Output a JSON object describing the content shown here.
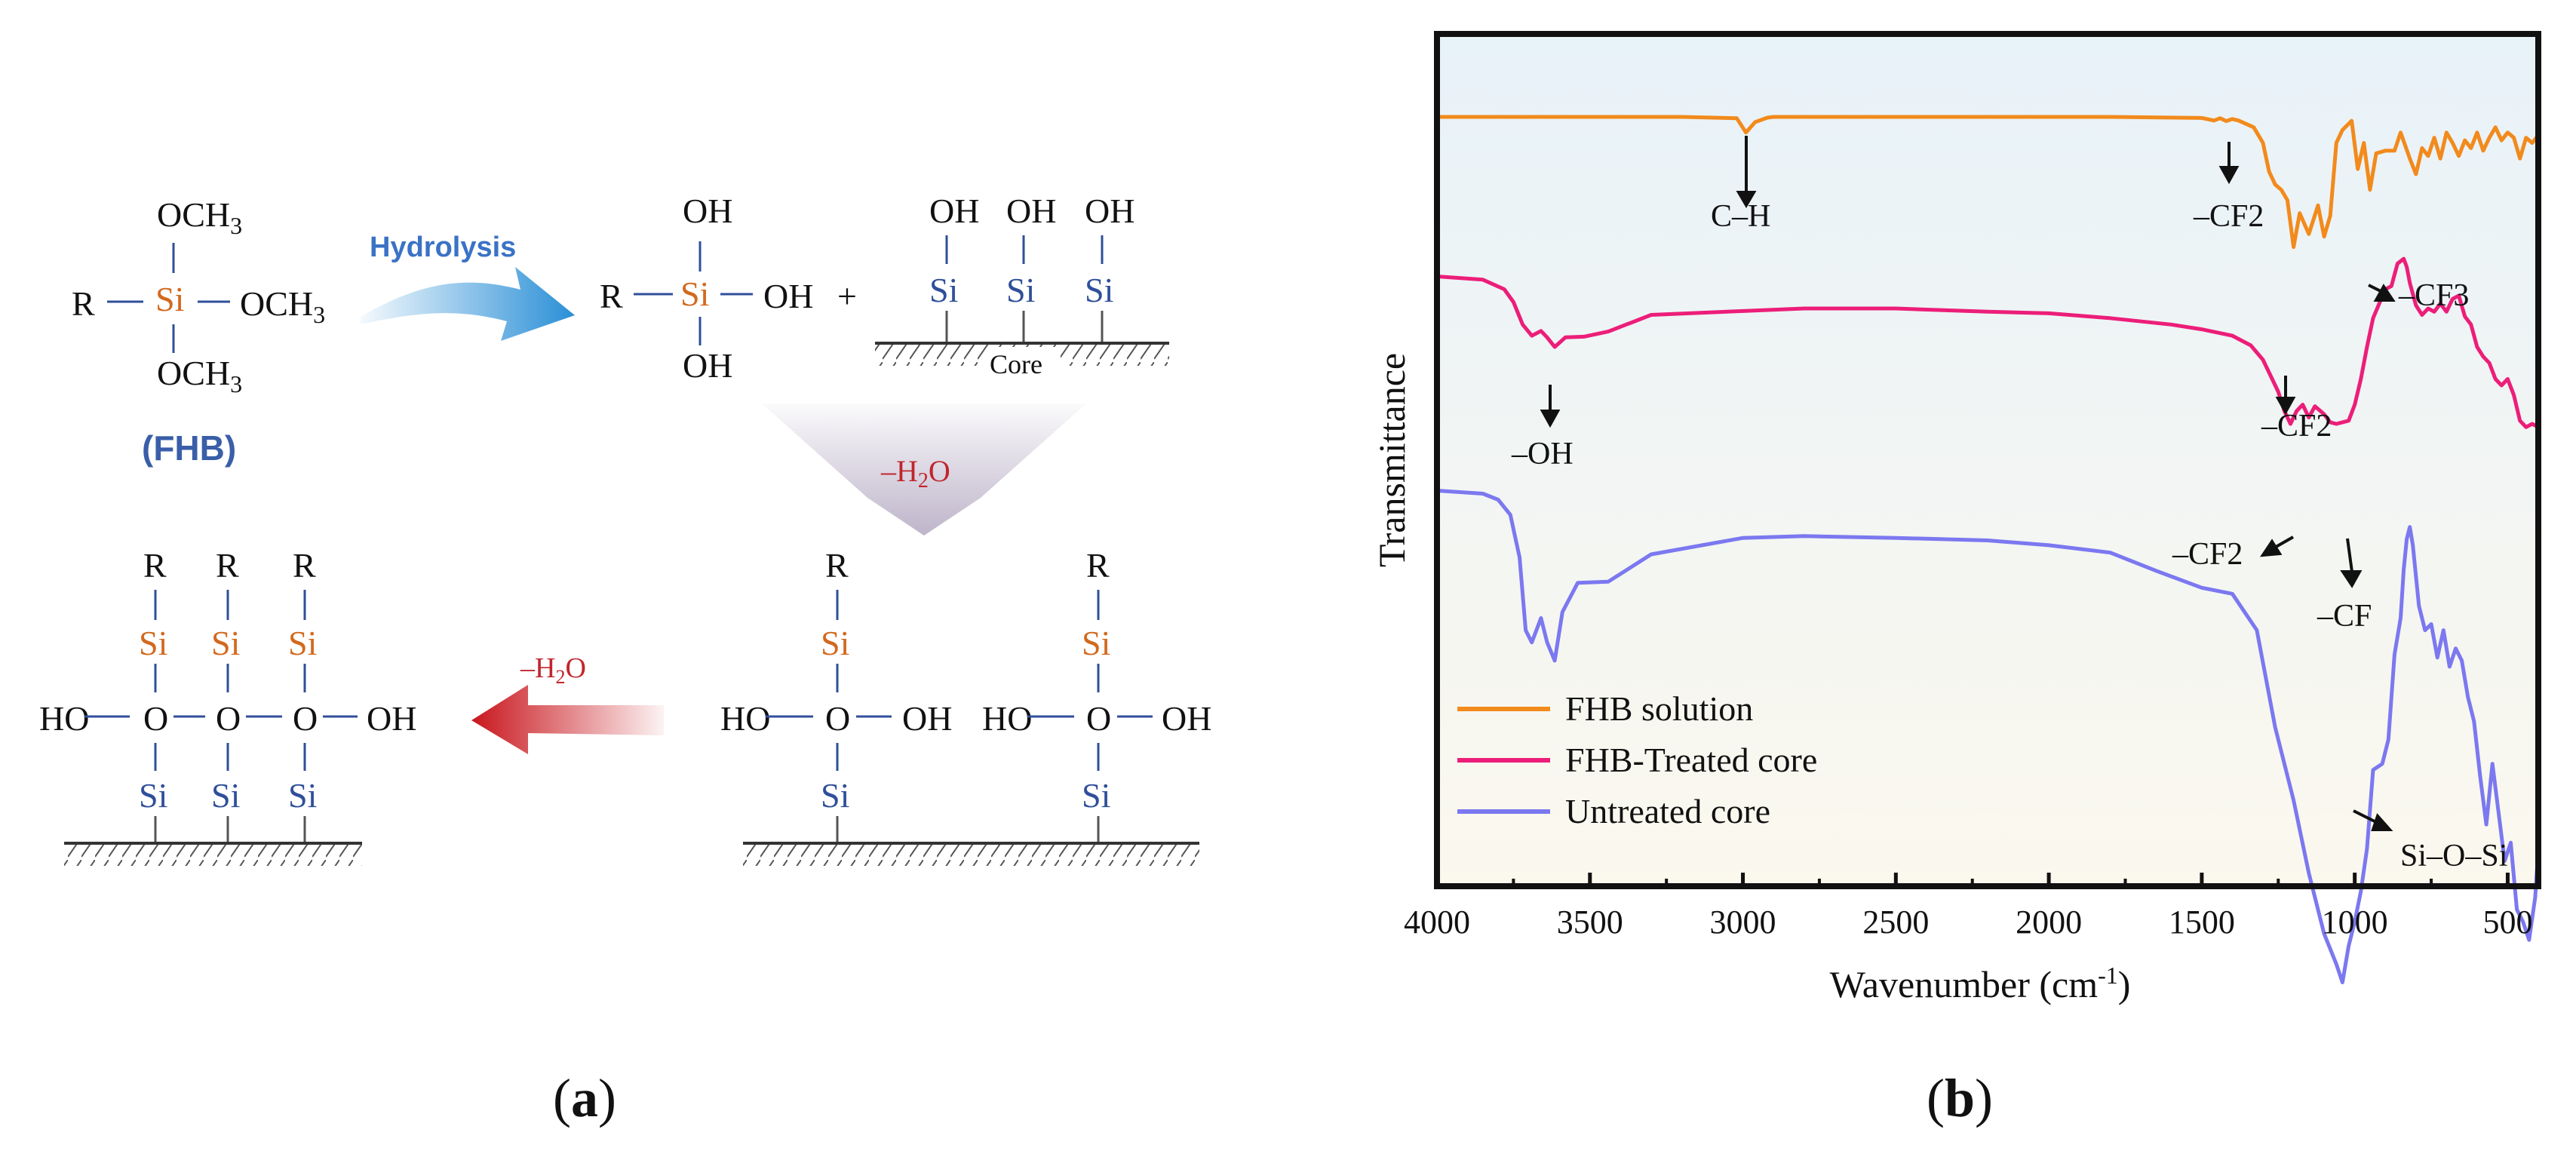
{
  "panel_a": {
    "label": "(a)",
    "hydrolysis_label": "Hydrolysis",
    "fhb_label": "(FHB)",
    "water_loss_1": "–H2O",
    "water_loss_2": "–H2O",
    "core_label": "Core",
    "r": "R",
    "si": "Si",
    "o": "O",
    "oh": "OH",
    "ho": "HO",
    "och3": "OCH3",
    "plus": "+"
  },
  "panel_b": {
    "label": "(b)"
  },
  "colors": {
    "fhb_solution": "#f28a1c",
    "fhb_treated": "#ec1e79",
    "untreated": "#7b78f0",
    "hydrolysis_arrow": "#2a8fd6",
    "condense_arrow": "#c8161d",
    "si_orange": "#d2691e",
    "si_blue": "#2f4f9a"
  },
  "chart_data": {
    "type": "line",
    "title": "",
    "xlabel": "Wavenumber (cm-1)",
    "ylabel": "Transmittance",
    "xlim": [
      4000,
      400
    ],
    "x_ticks": [
      4000,
      3500,
      3000,
      2500,
      2000,
      1500,
      1000,
      500
    ],
    "legend": [
      "FHB solution",
      "FHB-Treated core",
      "Untreated core"
    ],
    "legend_position": "bottom-left",
    "annotations": [
      "C–H",
      "–CF2",
      "–CF3",
      "–OH",
      "–CF2",
      "–CF2",
      "–CF",
      "Si–O–Si"
    ],
    "series": [
      {
        "name": "FHB solution",
        "x": [
          4000,
          3200,
          3020,
          2990,
          2960,
          2920,
          2900,
          2850,
          2600,
          2200,
          1800,
          1500,
          1460,
          1440,
          1420,
          1400,
          1380,
          1330,
          1300,
          1280,
          1260,
          1240,
          1220,
          1200,
          1180,
          1150,
          1120,
          1100,
          1080,
          1060,
          1040,
          1010,
          990,
          970,
          950,
          930,
          900,
          870,
          850,
          820,
          800,
          780,
          760,
          740,
          720,
          700,
          680,
          660,
          640,
          620,
          600,
          580,
          560,
          540,
          520,
          500,
          480,
          460,
          440,
          420,
          400
        ],
        "values": [
          100,
          100,
          99.5,
          94,
          98,
          99.7,
          100,
          100,
          100,
          100,
          100,
          99.6,
          98.6,
          99.5,
          98.4,
          99.2,
          98.6,
          96,
          90,
          79,
          74,
          72,
          68,
          50,
          63,
          55,
          66,
          54,
          62,
          90,
          95,
          98.5,
          80,
          90,
          72,
          86,
          87,
          87,
          94,
          84,
          78,
          88,
          85,
          92,
          84,
          94,
          90,
          85,
          91,
          88,
          94,
          87,
          92,
          96,
          91,
          94,
          92,
          84,
          92,
          90,
          93
        ]
      },
      {
        "name": "FHB-Treated core",
        "x": [
          4000,
          3850,
          3780,
          3750,
          3720,
          3690,
          3660,
          3640,
          3615,
          3580,
          3520,
          3440,
          3300,
          3000,
          2800,
          2500,
          2200,
          2000,
          1800,
          1600,
          1500,
          1400,
          1340,
          1300,
          1270,
          1250,
          1230,
          1210,
          1190,
          1170,
          1150,
          1130,
          1100,
          1080,
          1060,
          1040,
          1020,
          1000,
          980,
          960,
          940,
          900,
          880,
          860,
          840,
          830,
          820,
          800,
          780,
          760,
          740,
          720,
          700,
          680,
          660,
          640,
          620,
          600,
          580,
          560,
          540,
          520,
          500,
          480,
          460,
          440,
          420,
          400
        ],
        "values": [
          62,
          61,
          58,
          54,
          47,
          43.5,
          45,
          43,
          40,
          43,
          43.2,
          44.8,
          50,
          51.2,
          52,
          52,
          51,
          50.5,
          49,
          47,
          45.5,
          43.5,
          40.5,
          36,
          30,
          26,
          20,
          16,
          20,
          22,
          18,
          21.5,
          19,
          16.5,
          16,
          16.5,
          17,
          22,
          30,
          40,
          49,
          58,
          59,
          66,
          67.5,
          65,
          60,
          53,
          50,
          52,
          51,
          53.5,
          51,
          55,
          56,
          49.5,
          47,
          40,
          37,
          35,
          30,
          28,
          30,
          25,
          17,
          15,
          16,
          15
        ]
      },
      {
        "name": "Untreated core",
        "x": [
          4000,
          3850,
          3800,
          3760,
          3730,
          3710,
          3690,
          3660,
          3640,
          3615,
          3590,
          3540,
          3440,
          3300,
          3000,
          2800,
          2500,
          2200,
          2000,
          1800,
          1650,
          1500,
          1400,
          1320,
          1260,
          1200,
          1150,
          1100,
          1060,
          1040,
          1020,
          1000,
          980,
          960,
          940,
          910,
          890,
          870,
          850,
          840,
          830,
          820,
          810,
          790,
          770,
          750,
          730,
          710,
          690,
          670,
          650,
          630,
          610,
          590,
          570,
          550,
          530,
          510,
          490,
          470,
          450,
          430,
          410,
          400
        ],
        "values": [
          31,
          30.5,
          29.5,
          27,
          20,
          8,
          6,
          10,
          6,
          3,
          11,
          15.8,
          16,
          20.5,
          23.2,
          23.5,
          23.2,
          22.8,
          22,
          20.8,
          17.8,
          15,
          14,
          8,
          -8,
          -20,
          -32,
          -42,
          -47,
          -50,
          -44,
          -40,
          -35,
          -28,
          -15,
          -14,
          -10,
          4,
          10,
          18,
          23,
          25,
          22,
          12,
          8,
          9,
          3.5,
          8,
          2,
          5,
          3,
          -3,
          -7,
          -16,
          -24,
          -14,
          -22,
          -30,
          -27,
          -38,
          -40,
          -43,
          -36,
          -28
        ]
      }
    ]
  }
}
